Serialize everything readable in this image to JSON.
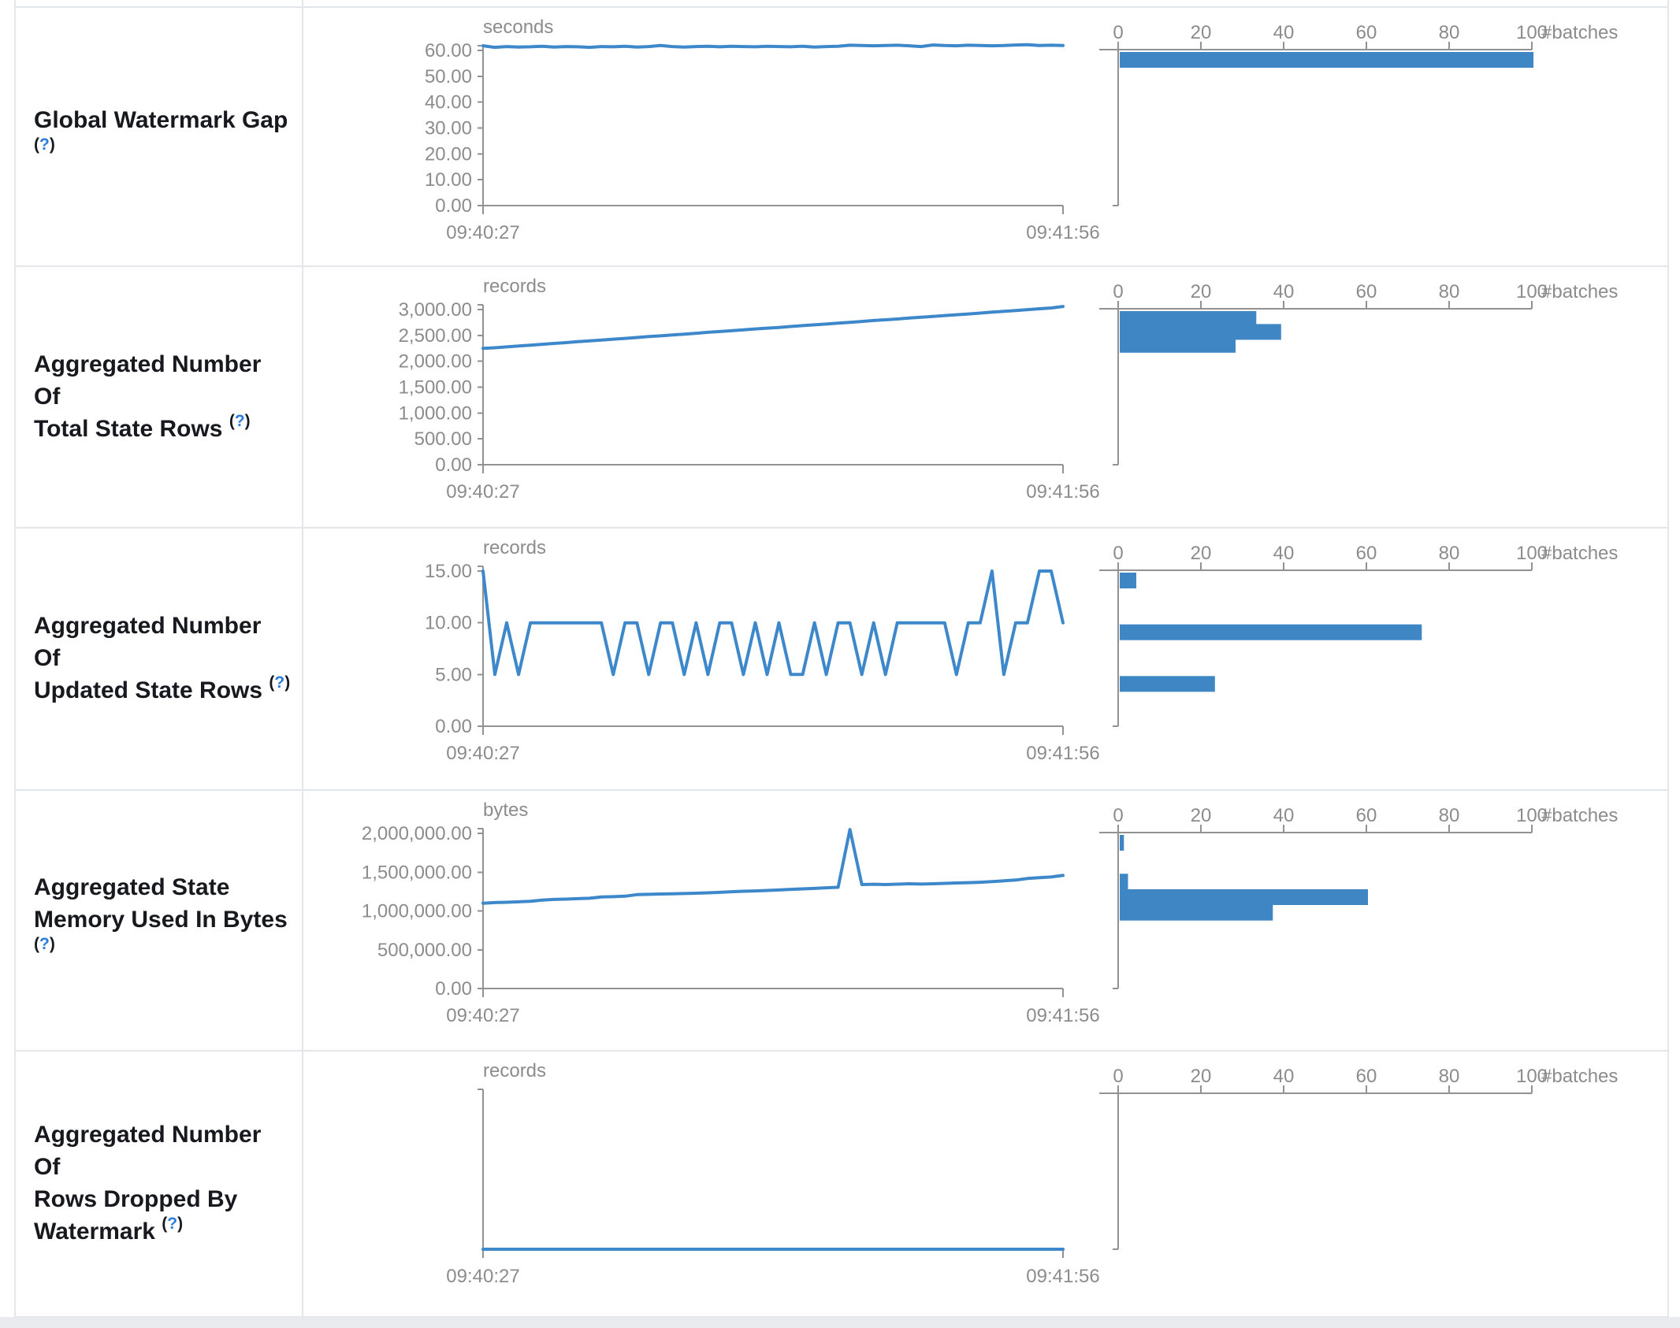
{
  "colors": {
    "line": "#3d88cb",
    "bar": "#3e86c4",
    "axis": "#929292",
    "tick_text": "#8c8c8c",
    "label_text": "#17191e",
    "help_link": "#2b7bdb",
    "border": "#e3e6ea",
    "page_bottom_strip": "#e9ebee"
  },
  "time_axis": {
    "start": "09:40:27",
    "end": "09:41:56"
  },
  "histogram_axis": {
    "tick_labels": [
      "0",
      "20",
      "40",
      "60",
      "80",
      "100"
    ],
    "max": 100,
    "label": "#batches"
  },
  "chart_data": [
    {
      "metric": "Global Watermark Gap",
      "label_lines": [
        "Global Watermark Gap",
        "(?)"
      ],
      "type": "line+histogram",
      "unit": "seconds",
      "x_range": [
        "09:40:27",
        "09:41:56"
      ],
      "y_tick_labels": [
        "60.00",
        "50.00",
        "40.00",
        "30.00",
        "20.00",
        "10.00",
        "0.00"
      ],
      "y_max": 60,
      "timeline_values": [
        61.8,
        61.2,
        61.5,
        61.3,
        61.4,
        61.6,
        61.3,
        61.5,
        61.4,
        61.2,
        61.5,
        61.4,
        61.6,
        61.3,
        61.5,
        61.9,
        61.5,
        61.3,
        61.5,
        61.6,
        61.4,
        61.6,
        61.5,
        61.4,
        61.6,
        61.5,
        61.4,
        61.6,
        61.3,
        61.5,
        61.6,
        62.0,
        61.9,
        61.8,
        61.9,
        62.0,
        61.8,
        61.5,
        62.1,
        61.9,
        61.8,
        62.0,
        61.9,
        61.8,
        61.9,
        62.1,
        62.2,
        61.9,
        62.0,
        61.9
      ],
      "histogram_bins": [
        {
          "level": 60,
          "count": 100
        }
      ]
    },
    {
      "metric": "Aggregated Number Of Total State Rows",
      "label_lines": [
        "Aggregated Number Of",
        "Total State Rows (?)"
      ],
      "type": "line+histogram",
      "unit": "records",
      "x_range": [
        "09:40:27",
        "09:41:56"
      ],
      "y_tick_labels": [
        "3,000.00",
        "2,500.00",
        "2,000.00",
        "1,500.00",
        "1,000.00",
        "500.00",
        "0.00"
      ],
      "y_max": 3000,
      "timeline_values": [
        2250,
        2262,
        2278,
        2295,
        2310,
        2328,
        2345,
        2360,
        2378,
        2395,
        2410,
        2428,
        2442,
        2460,
        2478,
        2492,
        2510,
        2525,
        2542,
        2560,
        2575,
        2590,
        2608,
        2625,
        2640,
        2655,
        2672,
        2690,
        2705,
        2720,
        2738,
        2752,
        2770,
        2788,
        2802,
        2818,
        2835,
        2850,
        2868,
        2885,
        2900,
        2915,
        2932,
        2950,
        2965,
        2980,
        2998,
        3015,
        3030,
        3060
      ],
      "histogram_bins": [
        {
          "level": 3000,
          "count": 33
        },
        {
          "level": 2750,
          "count": 39
        },
        {
          "level": 2500,
          "count": 28
        }
      ]
    },
    {
      "metric": "Aggregated Number Of Updated State Rows",
      "label_lines": [
        "Aggregated Number Of",
        "Updated State Rows (?)"
      ],
      "type": "line+histogram",
      "unit": "records",
      "x_range": [
        "09:40:27",
        "09:41:56"
      ],
      "y_tick_labels": [
        "15.00",
        "10.00",
        "5.00",
        "0.00"
      ],
      "y_max": 15,
      "timeline_values": [
        15,
        5,
        10,
        5,
        10,
        10,
        10,
        10,
        10,
        10,
        10,
        5,
        10,
        10,
        5,
        10,
        10,
        5,
        10,
        5,
        10,
        10,
        5,
        10,
        5,
        10,
        5,
        5,
        10,
        5,
        10,
        10,
        5,
        10,
        5,
        10,
        10,
        10,
        10,
        10,
        5,
        10,
        10,
        15,
        5,
        10,
        10,
        15,
        15,
        10
      ],
      "histogram_bins": [
        {
          "level": 15,
          "count": 4
        },
        {
          "level": 10,
          "count": 73
        },
        {
          "level": 5,
          "count": 23
        }
      ]
    },
    {
      "metric": "Aggregated State Memory Used In Bytes",
      "label_lines": [
        "Aggregated State",
        "Memory Used In Bytes",
        "(?)"
      ],
      "type": "line+histogram",
      "unit": "bytes",
      "x_range": [
        "09:40:27",
        "09:41:56"
      ],
      "y_tick_labels": [
        "2,000,000.00",
        "1,500,000.00",
        "1,000,000.00",
        "500,000.00",
        "0.00"
      ],
      "y_max": 2000000,
      "timeline_values": [
        1100000,
        1108000,
        1112000,
        1118000,
        1125000,
        1140000,
        1148000,
        1152000,
        1158000,
        1163000,
        1180000,
        1184000,
        1190000,
        1210000,
        1214000,
        1218000,
        1220000,
        1224000,
        1228000,
        1234000,
        1240000,
        1248000,
        1254000,
        1258000,
        1264000,
        1270000,
        1278000,
        1284000,
        1290000,
        1298000,
        1305000,
        2050000,
        1340000,
        1344000,
        1340000,
        1345000,
        1350000,
        1346000,
        1350000,
        1355000,
        1360000,
        1364000,
        1370000,
        1378000,
        1388000,
        1398000,
        1418000,
        1428000,
        1438000,
        1458000
      ],
      "histogram_bins": [
        {
          "level": 2000000,
          "count": 1
        },
        {
          "level": 1500000,
          "count": 2
        },
        {
          "level": 1300000,
          "count": 60
        },
        {
          "level": 1100000,
          "count": 37
        }
      ]
    },
    {
      "metric": "Aggregated Number Of Rows Dropped By Watermark",
      "label_lines": [
        "Aggregated Number Of",
        "Rows Dropped By",
        "Watermark (?)"
      ],
      "type": "line+histogram",
      "unit": "records",
      "x_range": [
        "09:40:27",
        "09:41:56"
      ],
      "y_tick_labels": [],
      "y_max": 1,
      "timeline_values": [
        0,
        0,
        0,
        0,
        0,
        0,
        0,
        0,
        0,
        0,
        0,
        0,
        0,
        0,
        0,
        0,
        0,
        0,
        0,
        0,
        0,
        0,
        0,
        0,
        0,
        0,
        0,
        0,
        0,
        0,
        0,
        0,
        0,
        0,
        0,
        0,
        0,
        0,
        0,
        0,
        0,
        0,
        0,
        0,
        0,
        0,
        0,
        0,
        0,
        0
      ],
      "histogram_bins": []
    }
  ]
}
